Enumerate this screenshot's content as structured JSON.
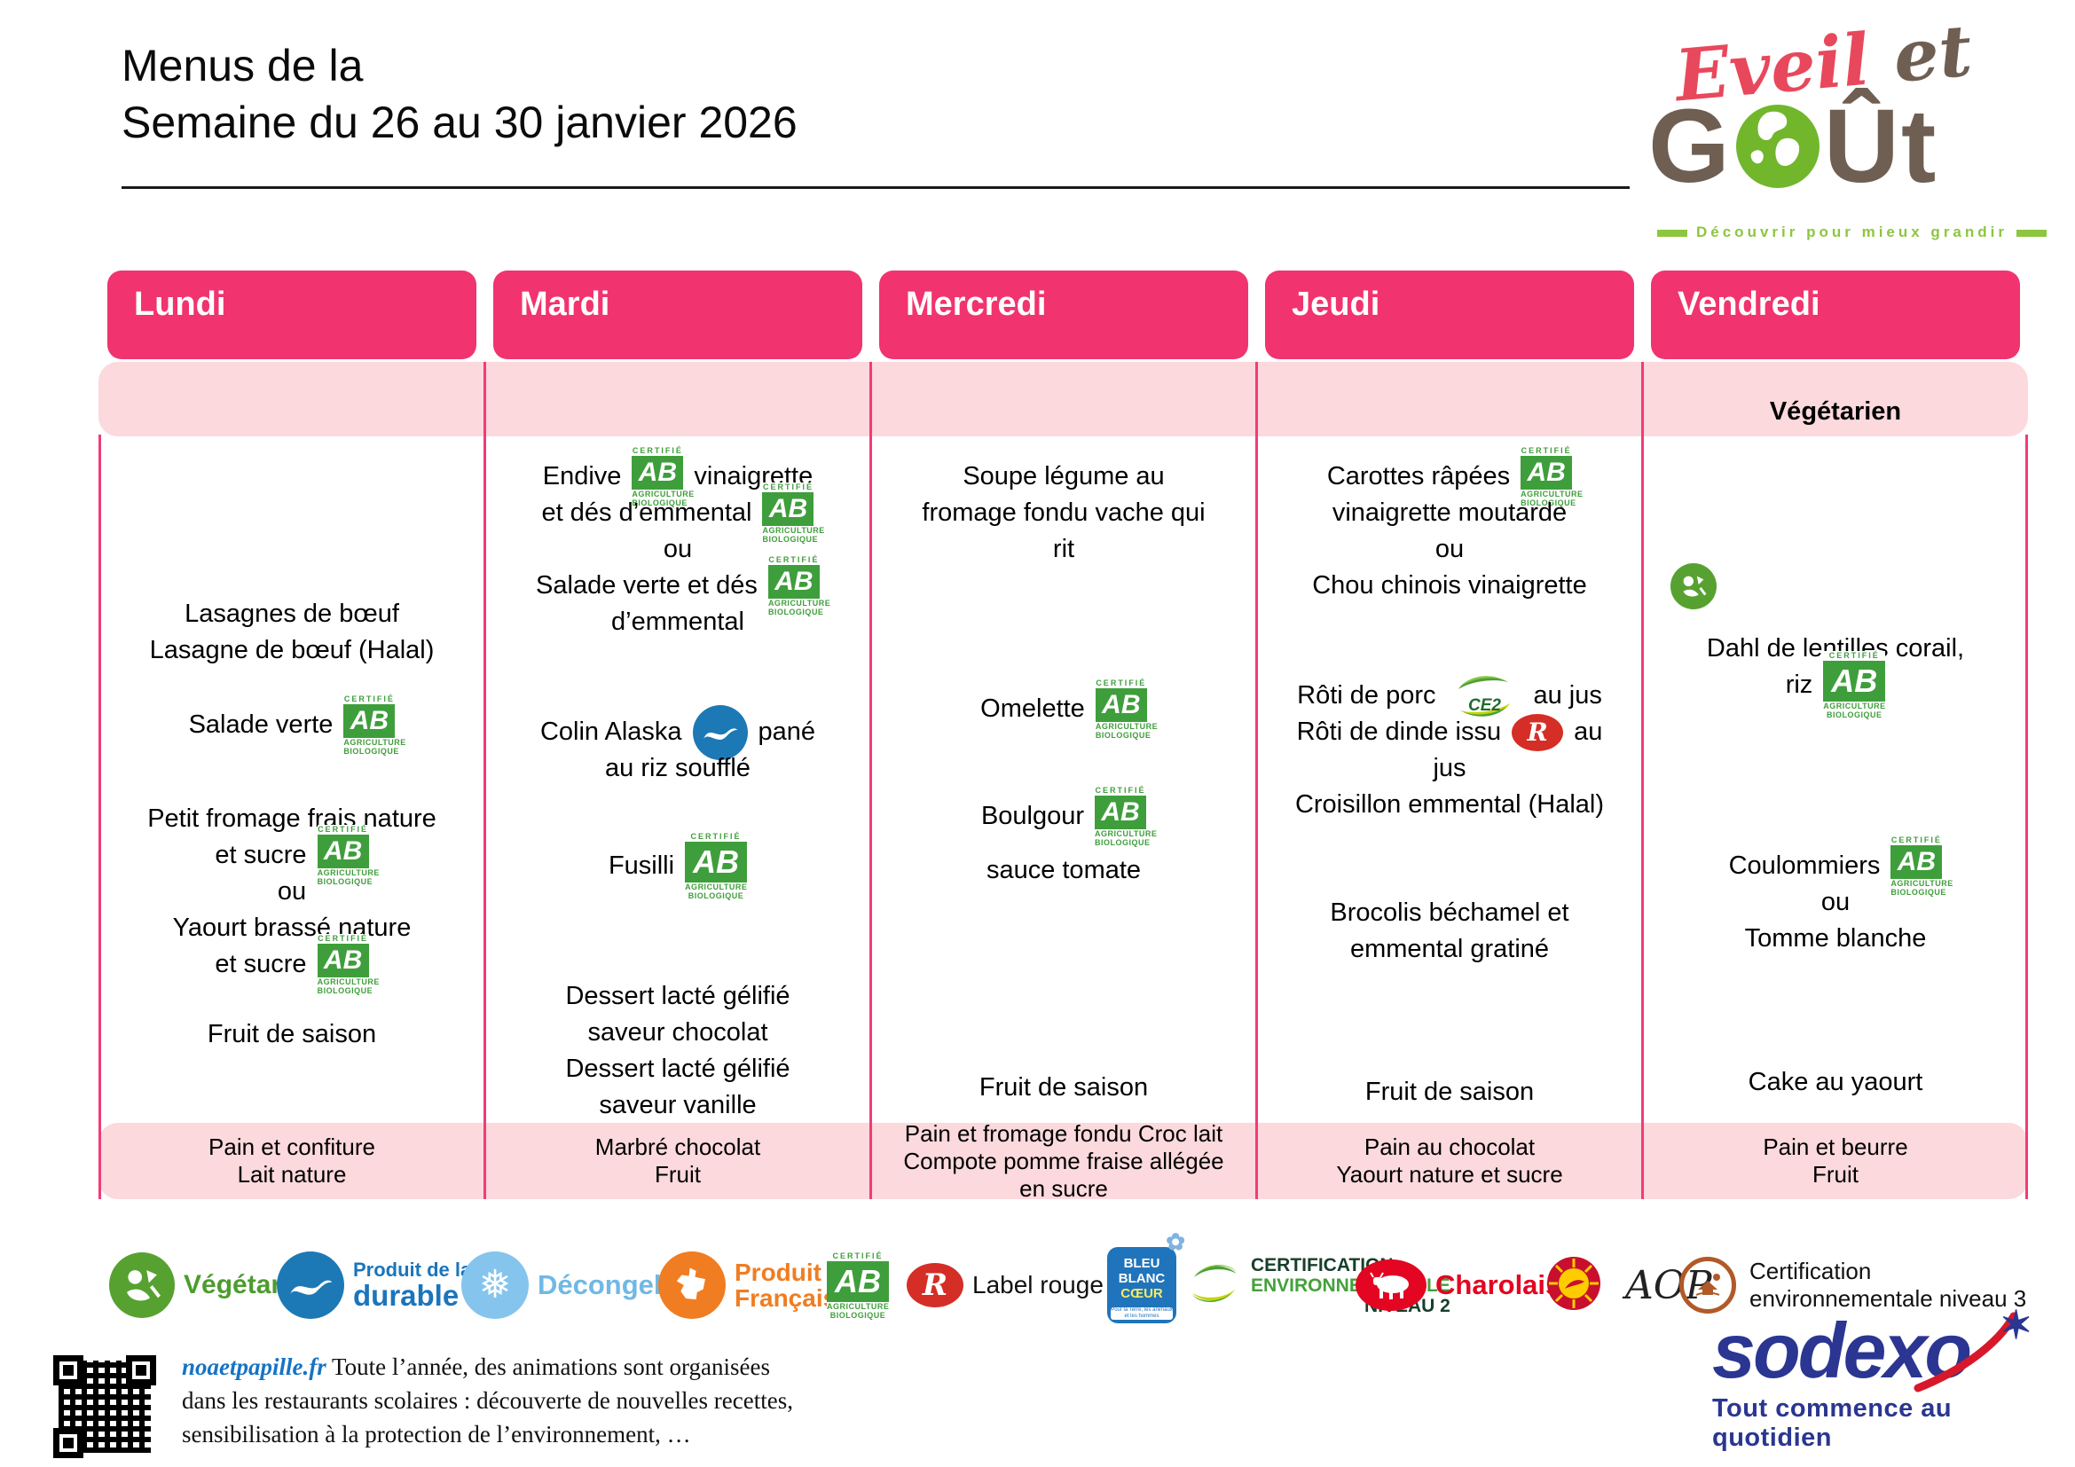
{
  "title": {
    "line1": "Menus de la",
    "line2": "Semaine du 26 au 30 janvier 2026"
  },
  "logo": {
    "script_part1": "Eveil",
    "script_part2": " et",
    "word_g": "G",
    "word_u": "Ût",
    "tagline": "Découvrir pour mieux grandir"
  },
  "icons": {
    "ab": {
      "top": "CERTIFIÉ",
      "mid": "AB",
      "b1": "AGRICULTURE",
      "b2": "BIOLOGIQUE"
    },
    "ce2": "CE2",
    "label_rouge_letter": "R"
  },
  "days": [
    {
      "name": "Lundi",
      "lines": [
        {
          "t": "Lasagnes de bœuf"
        },
        {
          "t": "Lasagne de bœuf (Halal)"
        },
        {
          "t": "Salade verte"
        },
        {
          "t": "Petit fromage frais nature"
        },
        {
          "t": "et sucre"
        },
        {
          "t": "ou"
        },
        {
          "t": "Yaourt brassé nature"
        },
        {
          "t": "et sucre"
        },
        {
          "t": "Fruit de saison"
        }
      ],
      "gouter": [
        "Pain et confiture",
        "Lait nature"
      ]
    },
    {
      "name": "Mardi",
      "lines": [
        {
          "pre": "Endive",
          "post": "vinaigrette"
        },
        {
          "t": "et dés d’emmental"
        },
        {
          "t": "ou"
        },
        {
          "t": "Salade verte et dés"
        },
        {
          "t": "d’emmental"
        },
        {
          "pre": "Colin Alaska",
          "post": "pané"
        },
        {
          "t": "au riz soufflé"
        },
        {
          "t": "Fusilli"
        },
        {
          "t": "Dessert lacté gélifié"
        },
        {
          "t": "saveur chocolat"
        },
        {
          "t": "Dessert lacté gélifié"
        },
        {
          "t": "saveur vanille"
        }
      ],
      "gouter": [
        "Marbré chocolat",
        "Fruit"
      ]
    },
    {
      "name": "Mercredi",
      "lines": [
        {
          "t": "Soupe légume au"
        },
        {
          "t": "fromage fondu vache qui"
        },
        {
          "t": "rit"
        },
        {
          "t": "Omelette"
        },
        {
          "t": "Boulgour"
        },
        {
          "t": "sauce tomate"
        },
        {
          "t": "Fruit de saison"
        }
      ],
      "gouter": [
        "Pain et fromage fondu Croc lait",
        "Compote pomme fraise allégée",
        "en sucre"
      ]
    },
    {
      "name": "Jeudi",
      "lines": [
        {
          "t": "Carottes râpées"
        },
        {
          "t": "vinaigrette moutarde"
        },
        {
          "t": "ou"
        },
        {
          "t": "Chou chinois vinaigrette"
        },
        {
          "pre": "Rôti de porc",
          "post": "au jus"
        },
        {
          "pre": "Rôti de dinde issu",
          "post": "au"
        },
        {
          "t": "jus"
        },
        {
          "t": "Croisillon emmental (Halal)"
        },
        {
          "t": "Brocolis béchamel et"
        },
        {
          "t": "emmental gratiné"
        },
        {
          "t": "Fruit de saison"
        }
      ],
      "gouter": [
        "Pain au chocolat",
        "Yaourt nature et sucre"
      ]
    },
    {
      "name": "Vendredi",
      "banner": "Végétarien",
      "lines": [
        {
          "t": "Dahl de lentilles corail,"
        },
        {
          "t": "riz"
        },
        {
          "t": "Coulommiers"
        },
        {
          "t": "ou"
        },
        {
          "t": "Tomme blanche"
        },
        {
          "t": "Cake au yaourt"
        }
      ],
      "gouter": [
        "Pain et beurre",
        "Fruit"
      ]
    }
  ],
  "legend": {
    "vegetarien": "Végétarien",
    "mer_1": "Produit de la mer",
    "mer_2": "durable",
    "decongele": "Décongelé",
    "fr_1": "Produit",
    "fr_2": "Français",
    "label_rouge": "Label rouge",
    "bbc_1": "BLEU",
    "bbc_2": "BLANC",
    "bbc_3": "CŒUR",
    "bbc_sub": "Pour la Terre, les animaux et les hommes",
    "cert2_1": "CERTIFICATION",
    "cert2_2": "ENVIRONNEMENTALE",
    "cert2_3": "NIVEAU 2",
    "charolais": "Charolais",
    "aop_script": "AOP",
    "cert3_1": "Certification",
    "cert3_2": "environnementale niveau 3"
  },
  "footer": {
    "site": "noaetpapille.fr",
    "text1": " Toute l’année, des animations sont organisées",
    "text2": "dans les restaurants scolaires : découverte de nouvelles recettes,",
    "text3": "sensibilisation à la protection de l’environnement, …"
  },
  "sodexo": {
    "name": "sodexo",
    "star": "✶",
    "tagline": "Tout commence au quotidien"
  }
}
